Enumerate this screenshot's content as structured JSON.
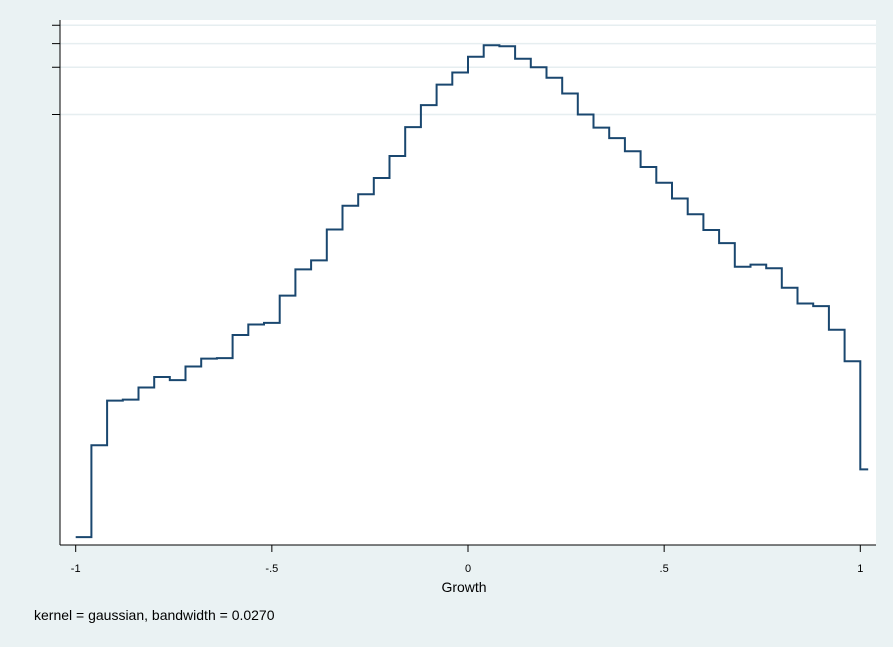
{
  "chart_data": {
    "type": "line",
    "style": "step",
    "xlabel": "Growth",
    "note": "kernel = gaussian, bandwidth = 0.0270",
    "xlim": [
      -1.04,
      1.04
    ],
    "ylim": [
      0,
      1.0
    ],
    "x_ticks": [
      -1,
      -0.5,
      0,
      0.5,
      1
    ],
    "x_tick_labels": [
      "-1",
      "-.5",
      "0",
      ".5",
      "1"
    ],
    "y_ticks": [
      0.82,
      0.91,
      0.955,
      0.99
    ],
    "y_tick_labels": [
      "",
      "",
      "",
      ""
    ],
    "grid": true,
    "line_color": "#1a476f",
    "series": [
      {
        "x": [
          -1.0,
          -0.96,
          -0.92,
          -0.88,
          -0.84,
          -0.8,
          -0.76,
          -0.72,
          -0.68,
          -0.64,
          -0.6,
          -0.56,
          -0.52,
          -0.48,
          -0.44,
          -0.4,
          -0.36,
          -0.32,
          -0.28,
          -0.24,
          -0.2,
          -0.16,
          -0.12,
          -0.08,
          -0.04,
          0.0,
          0.04,
          0.08,
          0.12,
          0.16,
          0.2,
          0.24,
          0.28,
          0.32,
          0.36,
          0.4,
          0.44,
          0.48,
          0.52,
          0.56,
          0.6,
          0.64,
          0.68,
          0.72,
          0.76,
          0.8,
          0.84,
          0.88,
          0.92,
          0.96,
          1.0,
          1.02
        ],
        "y": [
          0.015,
          0.19,
          0.275,
          0.277,
          0.3,
          0.32,
          0.314,
          0.34,
          0.355,
          0.356,
          0.4,
          0.42,
          0.423,
          0.475,
          0.525,
          0.542,
          0.601,
          0.646,
          0.668,
          0.699,
          0.741,
          0.796,
          0.838,
          0.877,
          0.9,
          0.93,
          0.952,
          0.95,
          0.926,
          0.91,
          0.89,
          0.86,
          0.82,
          0.795,
          0.775,
          0.75,
          0.72,
          0.69,
          0.66,
          0.63,
          0.6,
          0.575,
          0.53,
          0.534,
          0.527,
          0.49,
          0.46,
          0.455,
          0.41,
          0.35,
          0.144,
          0.144
        ]
      }
    ]
  }
}
